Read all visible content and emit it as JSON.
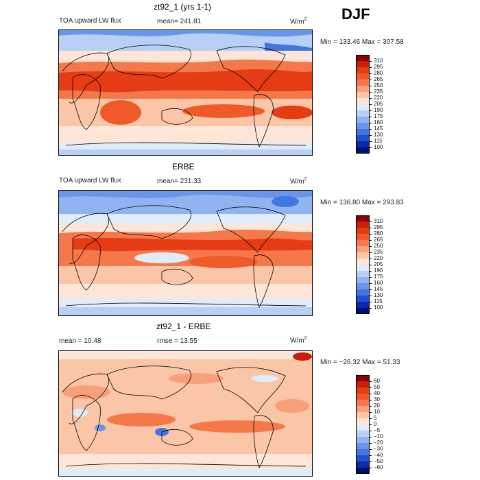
{
  "season": "DJF",
  "panels": [
    {
      "title": "zt92_1 (yrs 1-1)",
      "left_label": "TOA upward LW flux",
      "mid_label": "mean= 241.81",
      "units": "W/m",
      "units_sup": "2",
      "minmax": "Min = 133.46 Max = 307.58"
    },
    {
      "title": "ERBE",
      "left_label": "TOA upward LW flux",
      "mid_label": "mean= 231.33",
      "units": "W/m",
      "units_sup": "2",
      "minmax": "Min = 136.80 Max = 293.83"
    },
    {
      "title": "zt92_1 - ERBE",
      "left_label": "mean =  10.48",
      "mid_label": "rmse =  13.55",
      "units": "W/m",
      "units_sup": "2",
      "minmax": "Min = −26.32 Max =  51.33"
    }
  ],
  "colorbars": [
    {
      "labels": [
        "310",
        "295",
        "280",
        "265",
        "250",
        "235",
        "220",
        "205",
        "190",
        "175",
        "160",
        "145",
        "130",
        "115",
        "100"
      ],
      "colors": [
        "#8b0000",
        "#c81e0a",
        "#e63c14",
        "#f05a2a",
        "#f5784a",
        "#f8a07a",
        "#fbc6a8",
        "#fde6d8",
        "#e0ecfa",
        "#b8d0f5",
        "#91b4f0",
        "#6a96ea",
        "#4276e2",
        "#2050d2",
        "#0a2aa8",
        "#000c78"
      ]
    },
    {
      "labels": [
        "310",
        "295",
        "280",
        "265",
        "250",
        "235",
        "220",
        "205",
        "190",
        "175",
        "160",
        "145",
        "130",
        "115",
        "100"
      ],
      "colors": [
        "#8b0000",
        "#c81e0a",
        "#e63c14",
        "#f05a2a",
        "#f5784a",
        "#f8a07a",
        "#fbc6a8",
        "#fde6d8",
        "#e0ecfa",
        "#b8d0f5",
        "#91b4f0",
        "#6a96ea",
        "#4276e2",
        "#2050d2",
        "#0a2aa8",
        "#000c78"
      ]
    },
    {
      "labels": [
        "60",
        "50",
        "40",
        "30",
        "20",
        "10",
        "5",
        "0",
        "−5",
        "−10",
        "−20",
        "−30",
        "−40",
        "−50",
        "−60"
      ],
      "colors": [
        "#8b0000",
        "#c81e0a",
        "#e63c14",
        "#f05a2a",
        "#f5784a",
        "#f8a07a",
        "#fbc6a8",
        "#fde6d8",
        "#e0ecfa",
        "#b8d0f5",
        "#91b4f0",
        "#6a96ea",
        "#4276e2",
        "#2050d2",
        "#0a2aa8",
        "#000c78"
      ]
    }
  ],
  "chart_data": [
    {
      "type": "heatmap",
      "title": "zt92_1 (yrs 1-1)",
      "variable": "TOA upward LW flux",
      "units": "W/m2",
      "mean": 241.81,
      "min": 133.46,
      "max": 307.58,
      "contour_levels": [
        100,
        115,
        130,
        145,
        160,
        175,
        190,
        205,
        220,
        235,
        250,
        265,
        280,
        295,
        310
      ]
    },
    {
      "type": "heatmap",
      "title": "ERBE",
      "variable": "TOA upward LW flux",
      "units": "W/m2",
      "mean": 231.33,
      "min": 136.8,
      "max": 293.83,
      "contour_levels": [
        100,
        115,
        130,
        145,
        160,
        175,
        190,
        205,
        220,
        235,
        250,
        265,
        280,
        295,
        310
      ]
    },
    {
      "type": "heatmap",
      "title": "zt92_1 - ERBE",
      "units": "W/m2",
      "mean": 10.48,
      "rmse": 13.55,
      "min": -26.32,
      "max": 51.33,
      "contour_levels": [
        -60,
        -50,
        -40,
        -30,
        -20,
        -10,
        -5,
        0,
        5,
        10,
        20,
        30,
        40,
        50,
        60
      ]
    }
  ]
}
